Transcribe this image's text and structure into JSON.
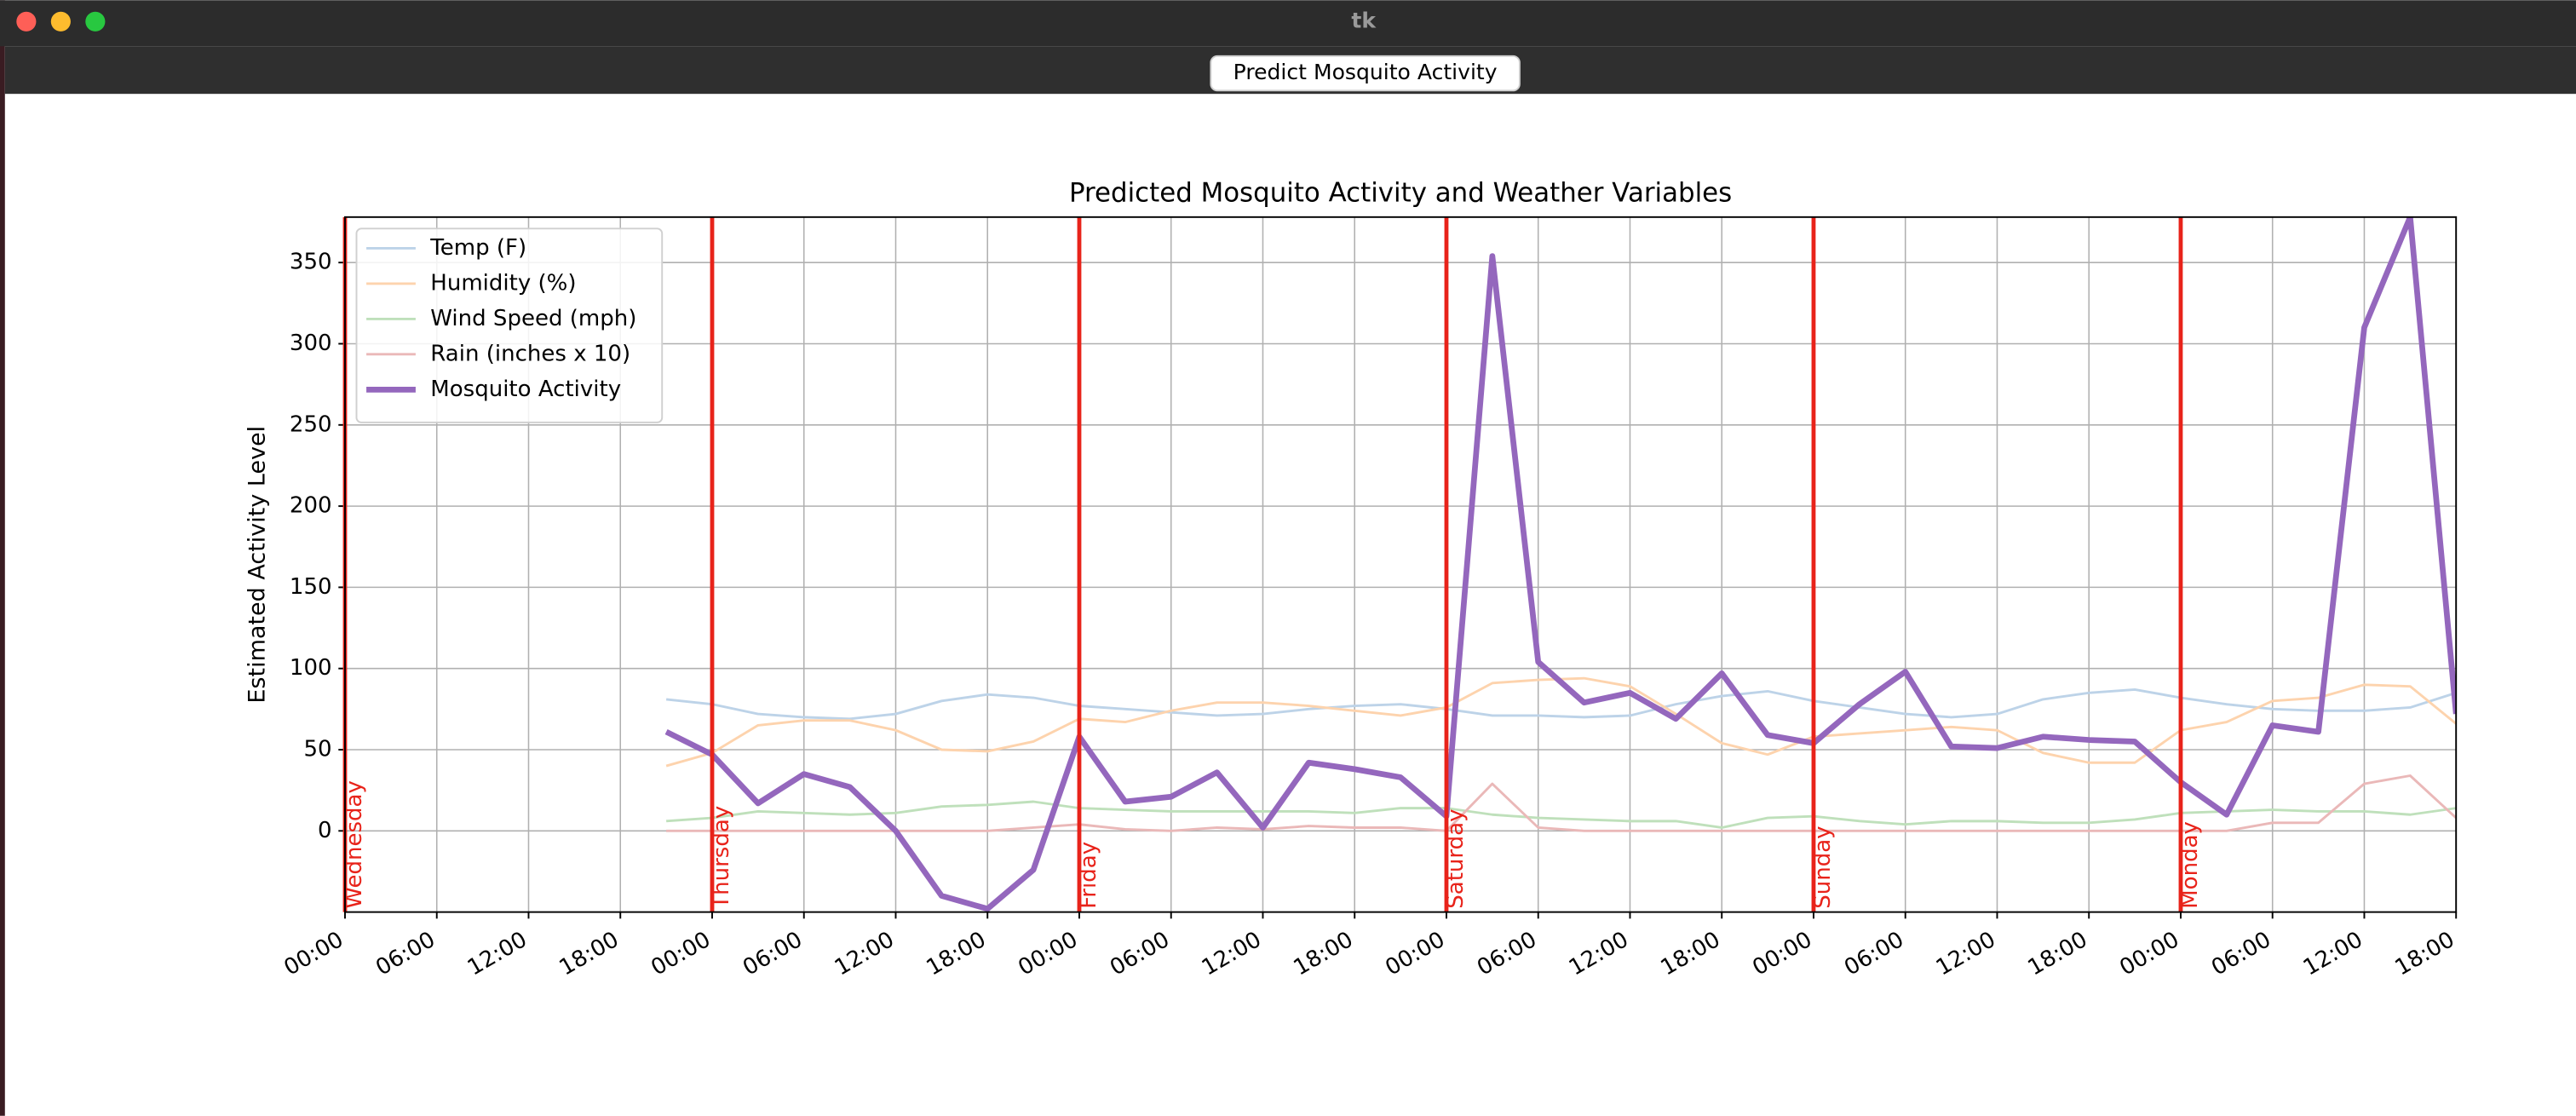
{
  "window": {
    "title": "tk",
    "button": "Predict Mosquito Activity"
  },
  "chart_data": {
    "type": "line",
    "title": "Predicted Mosquito Activity and Weather Variables",
    "y_label": "Estimated Activity Level",
    "x": [
      21,
      24,
      27,
      30,
      33,
      36,
      39,
      42,
      45,
      48,
      51,
      54,
      57,
      60,
      63,
      66,
      69,
      72,
      75,
      78,
      81,
      84,
      87,
      90,
      93,
      96,
      99,
      102,
      105,
      108,
      111,
      114,
      117,
      120,
      123,
      126,
      129,
      132,
      135,
      138
    ],
    "series": [
      {
        "name": "Temp (F)",
        "color": "#bdd3e8",
        "width": 1.5,
        "values": [
          81,
          78,
          72,
          70,
          69,
          72,
          80,
          84,
          82,
          77,
          75,
          73,
          71,
          72,
          75,
          77,
          78,
          75,
          71,
          71,
          70,
          71,
          78,
          83,
          86,
          80,
          76,
          72,
          70,
          72,
          81,
          85,
          87,
          82,
          78,
          75,
          74,
          74,
          76,
          85
        ]
      },
      {
        "name": "Humidity (%)",
        "color": "#fdd3ad",
        "width": 1.5,
        "values": [
          40,
          48,
          65,
          68,
          68,
          62,
          50,
          49,
          55,
          69,
          67,
          74,
          79,
          79,
          77,
          74,
          71,
          76,
          91,
          93,
          94,
          89,
          72,
          54,
          47,
          58,
          60,
          62,
          64,
          62,
          48,
          42,
          42,
          62,
          67,
          80,
          82,
          90,
          89,
          66
        ]
      },
      {
        "name": "Wind Speed (mph)",
        "color": "#bfe0bb",
        "width": 1.5,
        "values": [
          6,
          8,
          12,
          11,
          10,
          11,
          15,
          16,
          18,
          14,
          13,
          12,
          12,
          12,
          12,
          11,
          14,
          14,
          10,
          8,
          7,
          6,
          6,
          2,
          8,
          9,
          6,
          4,
          6,
          6,
          5,
          5,
          7,
          11,
          12,
          13,
          12,
          12,
          10,
          14
        ]
      },
      {
        "name": "Rain (inches x 10)",
        "color": "#eab8b8",
        "width": 1.5,
        "values": [
          0,
          0,
          0,
          0,
          0,
          0,
          0,
          0,
          2,
          4,
          1,
          0,
          2,
          1,
          3,
          2,
          2,
          0,
          29,
          2,
          0,
          0,
          0,
          0,
          0,
          0,
          0,
          0,
          0,
          0,
          0,
          0,
          0,
          0,
          0,
          5,
          5,
          29,
          34,
          8
        ]
      },
      {
        "name": "Mosquito Activity",
        "color": "#9467bd",
        "width": 3.5,
        "values": [
          61,
          47,
          17,
          35,
          27,
          0,
          -40,
          -48,
          -24,
          58,
          18,
          21,
          36,
          2,
          42,
          38,
          33,
          9,
          354,
          104,
          79,
          85,
          69,
          97,
          59,
          54,
          78,
          98,
          52,
          51,
          58,
          56,
          55,
          30,
          10,
          65,
          61,
          310,
          378,
          72
        ]
      }
    ],
    "xlim": [
      0,
      138
    ],
    "ylim": [
      -50,
      378
    ],
    "yticks": [
      0,
      50,
      100,
      150,
      200,
      250,
      300,
      350
    ],
    "xticks": [
      {
        "value": 0,
        "label": "00:00"
      },
      {
        "value": 6,
        "label": "06:00"
      },
      {
        "value": 12,
        "label": "12:00"
      },
      {
        "value": 18,
        "label": "18:00"
      },
      {
        "value": 24,
        "label": "00:00"
      },
      {
        "value": 30,
        "label": "06:00"
      },
      {
        "value": 36,
        "label": "12:00"
      },
      {
        "value": 42,
        "label": "18:00"
      },
      {
        "value": 48,
        "label": "00:00"
      },
      {
        "value": 54,
        "label": "06:00"
      },
      {
        "value": 60,
        "label": "12:00"
      },
      {
        "value": 66,
        "label": "18:00"
      },
      {
        "value": 72,
        "label": "00:00"
      },
      {
        "value": 78,
        "label": "06:00"
      },
      {
        "value": 84,
        "label": "12:00"
      },
      {
        "value": 90,
        "label": "18:00"
      },
      {
        "value": 96,
        "label": "00:00"
      },
      {
        "value": 102,
        "label": "06:00"
      },
      {
        "value": 108,
        "label": "12:00"
      },
      {
        "value": 114,
        "label": "18:00"
      },
      {
        "value": 120,
        "label": "00:00"
      },
      {
        "value": 126,
        "label": "06:00"
      },
      {
        "value": 132,
        "label": "12:00"
      },
      {
        "value": 138,
        "label": "18:00"
      }
    ],
    "day_markers": [
      {
        "x": 0,
        "label": "Wednesday"
      },
      {
        "x": 24,
        "label": "Thursday"
      },
      {
        "x": 48,
        "label": "Friday"
      },
      {
        "x": 72,
        "label": "Saturday"
      },
      {
        "x": 96,
        "label": "Sunday"
      },
      {
        "x": 120,
        "label": "Monday"
      }
    ],
    "marker_color": "#e8231a",
    "grid": true,
    "legend": "upper left"
  }
}
